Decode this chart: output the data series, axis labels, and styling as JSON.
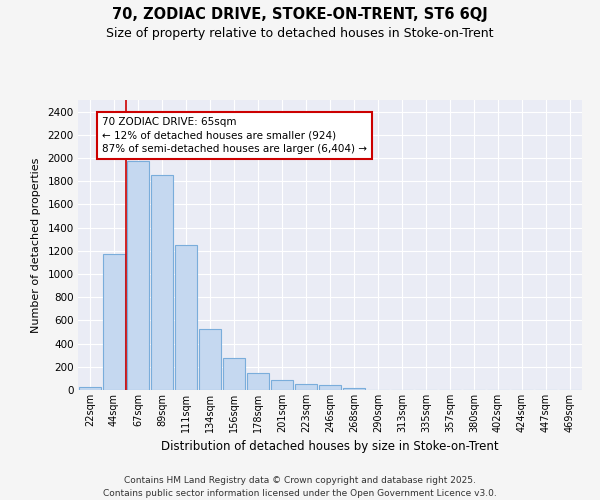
{
  "title": "70, ZODIAC DRIVE, STOKE-ON-TRENT, ST6 6QJ",
  "subtitle": "Size of property relative to detached houses in Stoke-on-Trent",
  "xlabel": "Distribution of detached houses by size in Stoke-on-Trent",
  "ylabel": "Number of detached properties",
  "categories": [
    "22sqm",
    "44sqm",
    "67sqm",
    "89sqm",
    "111sqm",
    "134sqm",
    "156sqm",
    "178sqm",
    "201sqm",
    "223sqm",
    "246sqm",
    "268sqm",
    "290sqm",
    "313sqm",
    "335sqm",
    "357sqm",
    "380sqm",
    "402sqm",
    "424sqm",
    "447sqm",
    "469sqm"
  ],
  "values": [
    30,
    1175,
    1975,
    1850,
    1250,
    525,
    275,
    150,
    90,
    50,
    40,
    20,
    0,
    0,
    0,
    0,
    0,
    0,
    0,
    0,
    0
  ],
  "bar_color": "#c5d8f0",
  "bar_edge_color": "#7aaddb",
  "red_line_x": 1.5,
  "red_line_color": "#cc0000",
  "annotation_text": "70 ZODIAC DRIVE: 65sqm\n← 12% of detached houses are smaller (924)\n87% of semi-detached houses are larger (6,404) →",
  "annotation_box_facecolor": "#ffffff",
  "annotation_box_edgecolor": "#cc0000",
  "ylim": [
    0,
    2500
  ],
  "yticks": [
    0,
    200,
    400,
    600,
    800,
    1000,
    1200,
    1400,
    1600,
    1800,
    2000,
    2200,
    2400
  ],
  "bg_color": "#eaecf5",
  "grid_color": "#ffffff",
  "fig_bg_color": "#f5f5f5",
  "footer": "Contains HM Land Registry data © Crown copyright and database right 2025.\nContains public sector information licensed under the Open Government Licence v3.0."
}
